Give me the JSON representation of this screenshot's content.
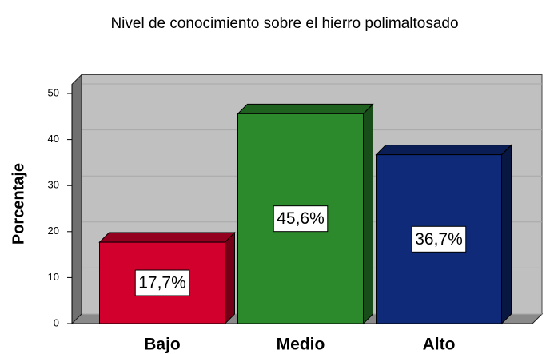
{
  "chart_data": {
    "type": "bar3d",
    "title": "Nivel de conocimiento sobre el hierro polimaltosado",
    "y_label": "Porcentaje",
    "categories": [
      "Bajo",
      "Medio",
      "Alto"
    ],
    "values": [
      17.7,
      45.6,
      36.7
    ],
    "value_labels": [
      "17,7%",
      "45,6%",
      "36,7%"
    ],
    "colors": [
      "#d2002c",
      "#2c8a2c",
      "#0e2a78"
    ],
    "ylim": [
      0,
      52
    ],
    "yticks": [
      0,
      10,
      20,
      30,
      40,
      50
    ],
    "grid": true
  }
}
